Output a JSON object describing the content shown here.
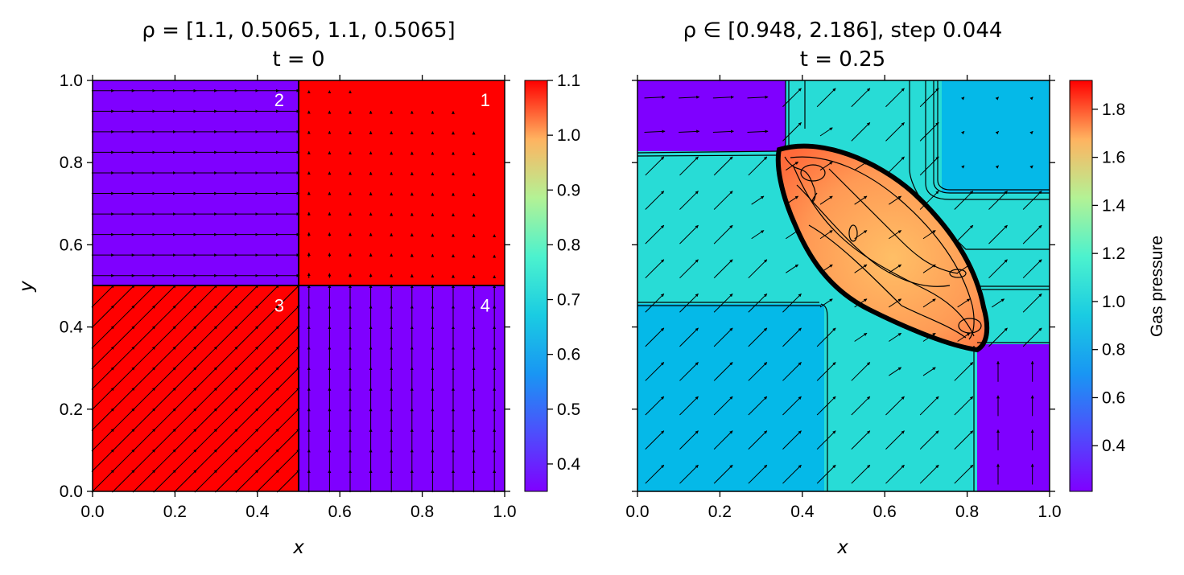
{
  "chart_data": [
    {
      "type": "heatmap",
      "panel": "left",
      "title_line1": "ρ = [1.1, 0.5065, 1.1, 0.5065]",
      "title_line2": "t = 0",
      "xlabel": "x",
      "ylabel": "y",
      "xlim": [
        0,
        1
      ],
      "ylim": [
        0,
        1
      ],
      "xticks": [
        "0.0",
        "0.2",
        "0.4",
        "0.6",
        "0.8",
        "1.0"
      ],
      "yticks": [
        "0.0",
        "0.2",
        "0.4",
        "0.6",
        "0.8",
        "1.0"
      ],
      "colormap": "rainbow",
      "colorbar": {
        "range": [
          0.35,
          1.1
        ],
        "ticks": [
          "0.4",
          "0.5",
          "0.6",
          "0.7",
          "0.8",
          "0.9",
          "1.0",
          "1.1"
        ],
        "label": ""
      },
      "regions": [
        {
          "label": "1",
          "x": [
            0.5,
            1.0
          ],
          "y": [
            0.5,
            1.0
          ],
          "value": 1.1,
          "velocity": [
            0.0,
            0.0
          ],
          "color": "#ff0000"
        },
        {
          "label": "2",
          "x": [
            0.0,
            0.5
          ],
          "y": [
            0.5,
            1.0
          ],
          "value": 0.35,
          "velocity": [
            1.206,
            0.0
          ],
          "color": "#7f00ff"
        },
        {
          "label": "3",
          "x": [
            0.0,
            0.5
          ],
          "y": [
            0.0,
            0.5
          ],
          "value": 1.1,
          "velocity": [
            1.206,
            1.206
          ],
          "color": "#ff0000"
        },
        {
          "label": "4",
          "x": [
            0.5,
            1.0
          ],
          "y": [
            0.0,
            0.5
          ],
          "value": 0.35,
          "velocity": [
            0.0,
            1.206
          ],
          "color": "#7f00ff"
        }
      ]
    },
    {
      "type": "heatmap",
      "panel": "right",
      "title_line1": "ρ ∈ [0.948, 2.186], step 0.044",
      "title_line2": "t = 0.25",
      "xlabel": "x",
      "ylabel": "",
      "xlim": [
        0,
        1
      ],
      "ylim": [
        0,
        1
      ],
      "xticks": [
        "0.0",
        "0.2",
        "0.4",
        "0.6",
        "0.8",
        "1.0"
      ],
      "yticks": [],
      "colormap": "rainbow",
      "colorbar": {
        "range": [
          0.21,
          1.92
        ],
        "ticks": [
          "0.4",
          "0.6",
          "0.8",
          "1.0",
          "1.2",
          "1.4",
          "1.6",
          "1.8"
        ],
        "label": "Gas pressure"
      },
      "regions": [
        {
          "name": "top-left",
          "value": 0.22,
          "color": "#7f00ff"
        },
        {
          "name": "bottom-right",
          "value": 0.22,
          "color": "#7f00ff"
        },
        {
          "name": "top-right",
          "value": 0.62,
          "color": "#05b9e8"
        },
        {
          "name": "bottom-left",
          "value": 0.62,
          "color": "#05b9e8"
        },
        {
          "name": "shocked-bands",
          "value": 0.82,
          "color": "#28dcd6"
        },
        {
          "name": "central-lens",
          "value": 1.5,
          "color": "#ffa85c"
        }
      ]
    }
  ]
}
